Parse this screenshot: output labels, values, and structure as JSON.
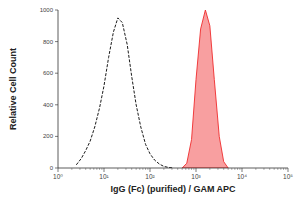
{
  "chart_data": {
    "type": "line",
    "xlabel": "IgG (Fc) (purified) / GAM APC",
    "ylabel": "Relative Cell Count",
    "log": "x",
    "x": [
      2.5,
      3.2,
      4,
      5,
      6.3,
      8,
      10,
      12.6,
      16,
      20,
      25,
      32,
      40,
      50,
      63,
      80,
      100,
      126,
      160,
      200,
      250,
      320,
      400,
      500,
      630,
      800,
      1000,
      1260,
      1600,
      2000,
      2500,
      3200,
      4000,
      5000
    ],
    "series": [
      {
        "type": "line",
        "color": "#000000",
        "line_style": "dashed",
        "values": [
          20,
          60,
          110,
          170,
          260,
          380,
          520,
          700,
          860,
          950,
          920,
          780,
          580,
          400,
          260,
          150,
          90,
          50,
          25,
          10,
          4,
          0,
          null,
          null,
          null,
          null,
          null,
          null,
          null,
          null,
          null,
          null,
          null,
          null
        ]
      },
      {
        "type": "area",
        "color": "#ef2b2d",
        "line_style": "solid",
        "values": [
          null,
          null,
          null,
          null,
          null,
          null,
          null,
          null,
          null,
          null,
          null,
          null,
          null,
          null,
          null,
          null,
          null,
          null,
          null,
          null,
          null,
          null,
          null,
          0,
          30,
          180,
          560,
          880,
          1000,
          900,
          560,
          200,
          40,
          0
        ]
      }
    ],
    "xlim": [
      1,
      100000
    ],
    "xticks": [
      {
        "value": 1,
        "label": "10⁰"
      },
      {
        "value": 10,
        "label": "10¹"
      },
      {
        "value": 100,
        "label": "10²"
      },
      {
        "value": 1000,
        "label": "10³"
      },
      {
        "value": 10000,
        "label": "10⁴"
      },
      {
        "value": 100000,
        "label": "10⁵"
      }
    ],
    "ylim": [
      0,
      1000
    ],
    "yticks": [
      0,
      200,
      400,
      600,
      800,
      1000
    ],
    "grid": false
  }
}
